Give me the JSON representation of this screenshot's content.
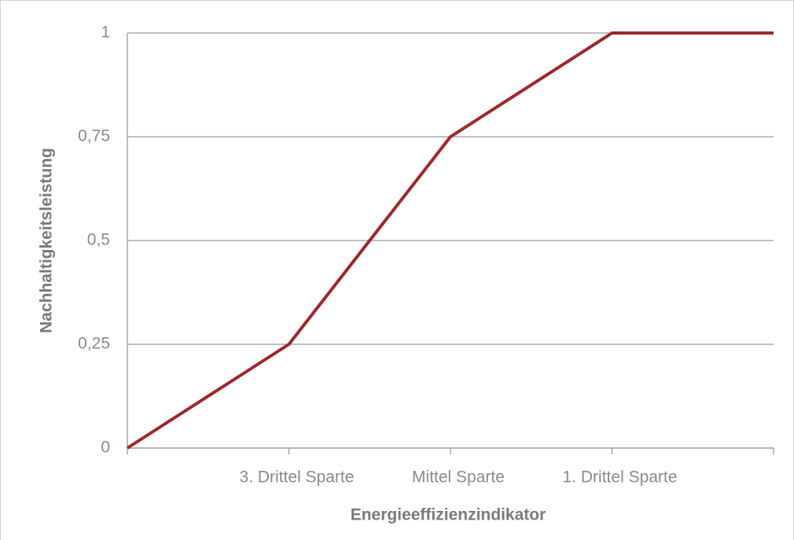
{
  "chart_data": {
    "type": "line",
    "x_label": "Energieeffizienzindikator",
    "y_label": "Nachhaltigkeitsleistung",
    "categories": [
      null,
      "3. Drittel Sparte",
      "Mittel Sparte",
      "1. Drittel Sparte",
      null
    ],
    "values": [
      0,
      0.25,
      0.75,
      1,
      1
    ],
    "color": "#a0262b",
    "ylim": [
      0,
      1
    ],
    "yticks": [
      0,
      {
        "value": 0.25,
        "label": "0,25"
      },
      {
        "value": 0.5,
        "label": "0,5"
      },
      {
        "value": 0.75,
        "label": "0,75"
      },
      1
    ],
    "grid": true
  }
}
